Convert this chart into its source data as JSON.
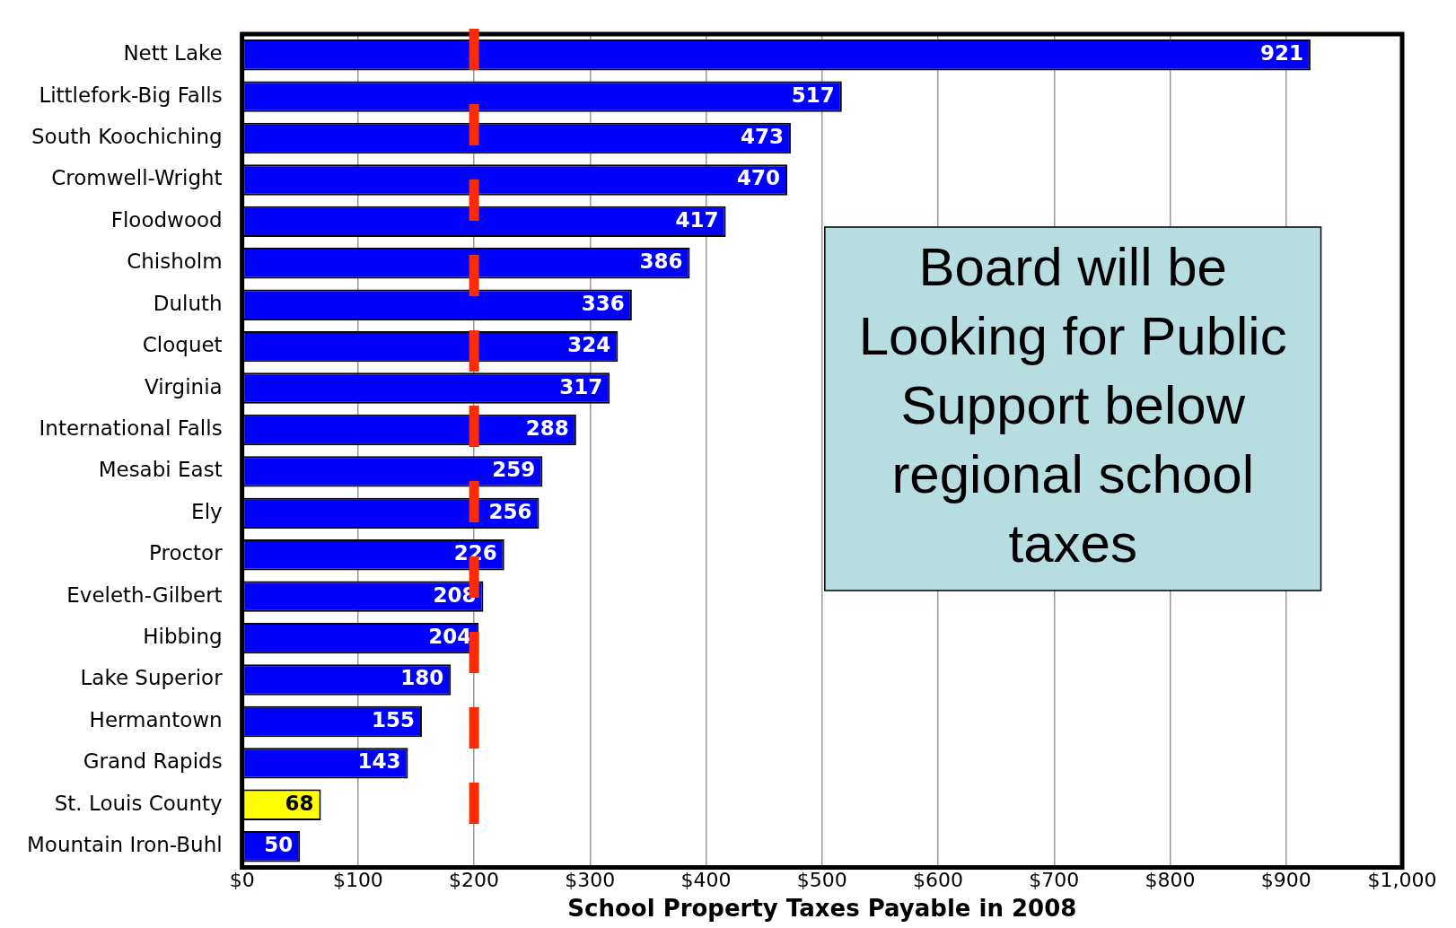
{
  "chart_data": {
    "type": "bar",
    "orientation": "horizontal",
    "xlabel": "School Property Taxes Payable in 2008",
    "categories": [
      "Nett Lake",
      "Littlefork-Big Falls",
      "South Koochiching",
      "Cromwell-Wright",
      "Floodwood",
      "Chisholm",
      "Duluth",
      "Cloquet",
      "Virginia",
      "International Falls",
      "Mesabi East",
      "Ely",
      "Proctor",
      "Eveleth-Gilbert",
      "Hibbing",
      "Lake Superior",
      "Hermantown",
      "Grand Rapids",
      "St. Louis County",
      "Mountain Iron-Buhl"
    ],
    "values": [
      921,
      517,
      473,
      470,
      417,
      386,
      336,
      324,
      317,
      288,
      259,
      256,
      226,
      208,
      204,
      180,
      155,
      143,
      68,
      50
    ],
    "colors": [
      "#0000ff",
      "#0000ff",
      "#0000ff",
      "#0000ff",
      "#0000ff",
      "#0000ff",
      "#0000ff",
      "#0000ff",
      "#0000ff",
      "#0000ff",
      "#0000ff",
      "#0000ff",
      "#0000ff",
      "#0000ff",
      "#0000ff",
      "#0000ff",
      "#0000ff",
      "#0000ff",
      "#ffff00",
      "#0000ff"
    ],
    "data_labels": true,
    "xlim": [
      0,
      1000
    ],
    "xticks": [
      {
        "value": 0,
        "label": "$0"
      },
      {
        "value": 100,
        "label": "$100"
      },
      {
        "value": 200,
        "label": "$200"
      },
      {
        "value": 300,
        "label": "$300"
      },
      {
        "value": 400,
        "label": "$400"
      },
      {
        "value": 500,
        "label": "$500"
      },
      {
        "value": 600,
        "label": "$600"
      },
      {
        "value": 700,
        "label": "$700"
      },
      {
        "value": 800,
        "label": "$800"
      },
      {
        "value": 900,
        "label": "$900"
      },
      {
        "value": 1000,
        "label": "$1,000"
      }
    ],
    "grid": "x",
    "legend": false,
    "ref_lines": [
      {
        "axis": "x",
        "value": 200,
        "color": "#ff2a00",
        "line_style": "dashed"
      }
    ],
    "annotations": [
      "Board will be Looking for Public Support below regional school taxes"
    ]
  }
}
